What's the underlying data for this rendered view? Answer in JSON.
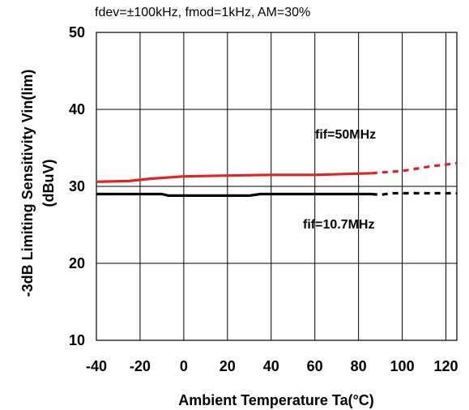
{
  "chart_data": {
    "type": "line",
    "subtitle": "fdev=±100kHz, fmod=1kHz, AM=30%",
    "xlabel": "Ambient Temperature Ta(°C)",
    "ylabel_line1": "-3dB Limiting Sensitivity Vin(lim)",
    "ylabel_line2": "(dBuV)",
    "xlim": [
      -40,
      125
    ],
    "ylim": [
      10,
      50
    ],
    "xticks": [
      -40,
      -20,
      0,
      20,
      40,
      60,
      80,
      100,
      120
    ],
    "yticks": [
      10,
      20,
      30,
      40,
      50
    ],
    "grid": true,
    "series": [
      {
        "name": "fif=50MHz",
        "color": "#e32222",
        "solid_points": [
          [
            -40,
            30.6
          ],
          [
            -25,
            30.7
          ],
          [
            -15,
            31.0
          ],
          [
            0,
            31.3
          ],
          [
            20,
            31.4
          ],
          [
            40,
            31.5
          ],
          [
            60,
            31.5
          ],
          [
            86,
            31.7
          ]
        ],
        "dashed_points": [
          [
            86,
            31.7
          ],
          [
            100,
            32.0
          ],
          [
            113,
            32.6
          ],
          [
            125,
            33.0
          ]
        ]
      },
      {
        "name": "fif=10.7MHz",
        "color": "#000000",
        "solid_points": [
          [
            -40,
            29.0
          ],
          [
            -10,
            29.0
          ],
          [
            -7,
            28.8
          ],
          [
            30,
            28.8
          ],
          [
            35,
            29.0
          ],
          [
            86,
            29.0
          ]
        ],
        "dashed_points": [
          [
            86,
            29.0
          ],
          [
            90,
            28.9
          ],
          [
            95,
            29.1
          ],
          [
            125,
            29.1
          ]
        ]
      }
    ]
  }
}
